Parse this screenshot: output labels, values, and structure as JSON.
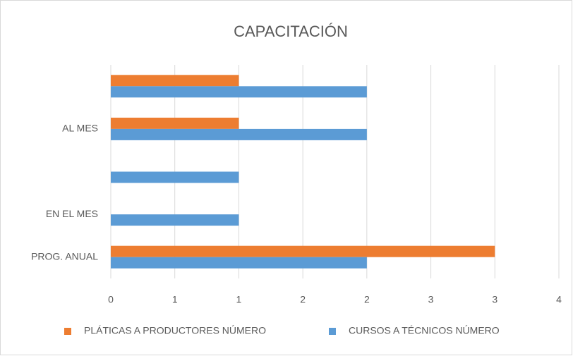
{
  "chart_data": {
    "type": "bar",
    "orientation": "horizontal",
    "title": "CAPACITACIÓN",
    "categories": [
      "PROG. ANUAL",
      "EN EL MES",
      null,
      "AL MES",
      null
    ],
    "series": [
      {
        "name": "PLÁTICAS A PRODUCTORES NÚMERO",
        "color": "#ed7d31",
        "values": [
          3,
          null,
          null,
          1,
          1
        ]
      },
      {
        "name": "CURSOS A TÉCNICOS NÚMERO",
        "color": "#5b9bd5",
        "values": [
          2,
          1,
          1,
          2,
          2
        ]
      }
    ],
    "xlim": [
      0,
      3.5
    ],
    "xticks": [
      0,
      {
        "value": 0.5,
        "label": "1"
      },
      1,
      {
        "value": 1.5,
        "label": "2"
      },
      2,
      {
        "value": 2.5,
        "label": "3"
      },
      3,
      {
        "value": 3.5,
        "label": "4"
      }
    ],
    "grid": true,
    "legend": "bottom"
  }
}
